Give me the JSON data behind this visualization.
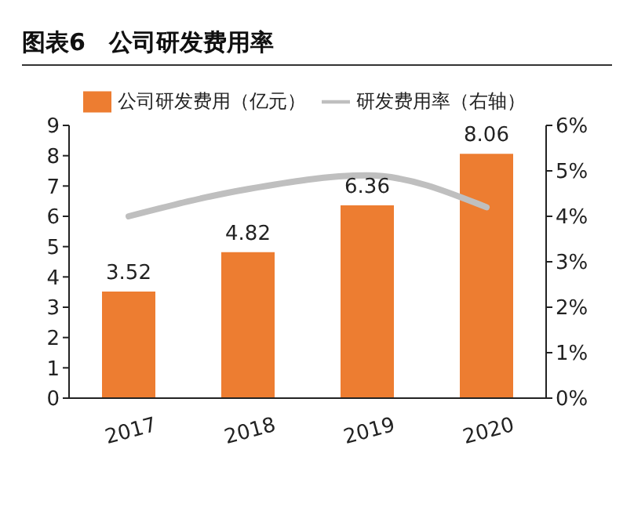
{
  "chart_data": {
    "type": "bar",
    "title": "图表6　公司研发费用率",
    "categories": [
      "2017",
      "2018",
      "2019",
      "2020"
    ],
    "series": [
      {
        "name": "公司研发费用（亿元）",
        "color": "#ed7d31",
        "values": [
          3.52,
          4.82,
          6.36,
          8.06
        ],
        "value_labels": [
          "3.52",
          "4.82",
          "6.36",
          "8.06"
        ]
      },
      {
        "name": "研发费用率（右轴）",
        "type": "line",
        "axis": "y2",
        "color": "#bfbfbf",
        "values": [
          4.0,
          4.6,
          4.9,
          4.2
        ]
      }
    ],
    "ylim": [
      0,
      9
    ],
    "yticks": [
      0,
      1,
      2,
      3,
      4,
      5,
      6,
      7,
      8,
      9
    ],
    "y2lim": [
      0,
      6
    ],
    "y2ticks": [
      {
        "value": 0,
        "label": "0%"
      },
      {
        "value": 1,
        "label": "1%"
      },
      {
        "value": 2,
        "label": "2%"
      },
      {
        "value": 3,
        "label": "3%"
      },
      {
        "value": 4,
        "label": "4%"
      },
      {
        "value": 5,
        "label": "5%"
      },
      {
        "value": 6,
        "label": "6%"
      }
    ],
    "legend": "top",
    "grid": false,
    "marker": "none",
    "line_style": "solid"
  }
}
